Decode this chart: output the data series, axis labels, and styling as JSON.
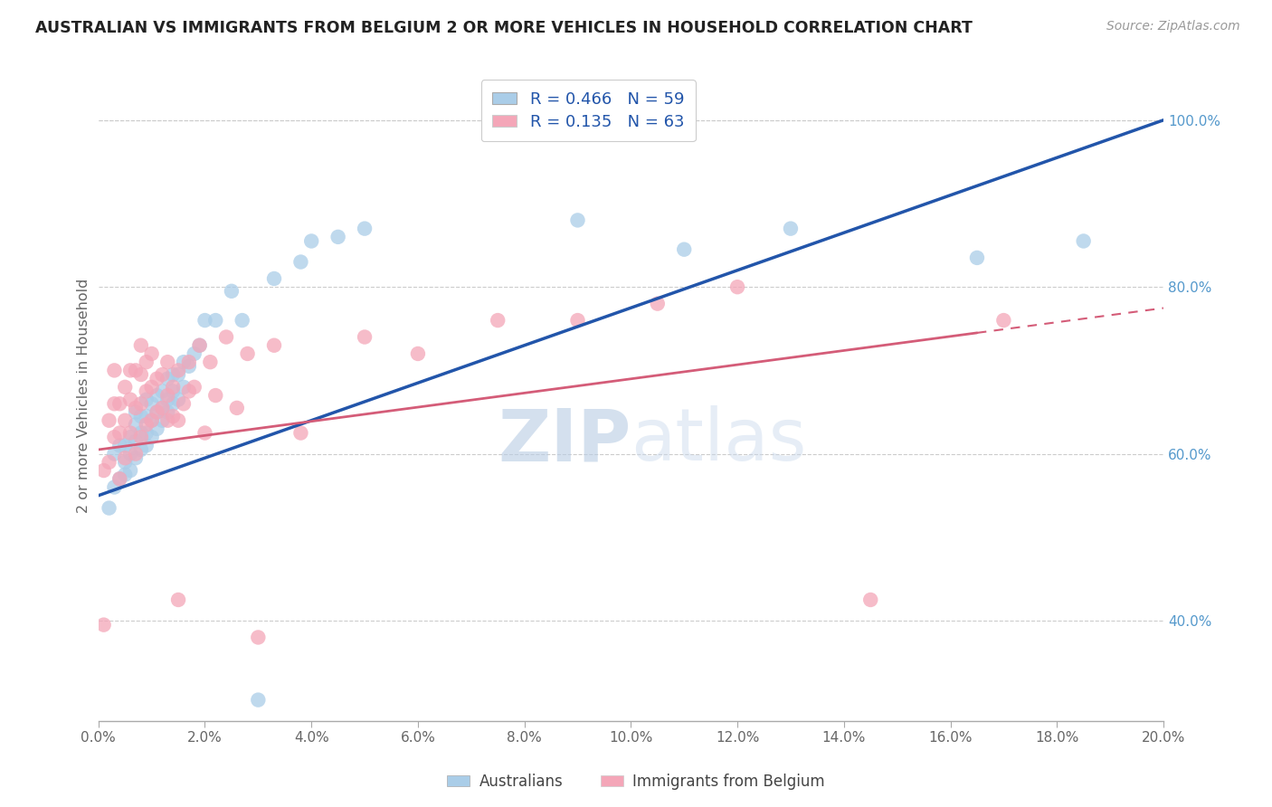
{
  "title": "AUSTRALIAN VS IMMIGRANTS FROM BELGIUM 2 OR MORE VEHICLES IN HOUSEHOLD CORRELATION CHART",
  "source": "Source: ZipAtlas.com",
  "ylabel": "2 or more Vehicles in Household",
  "xlim": [
    0.0,
    0.2
  ],
  "ylim": [
    0.28,
    1.06
  ],
  "legend_label1": "R = 0.466   N = 59",
  "legend_label2": "R = 0.135   N = 63",
  "legend_xlabel": "Australians",
  "legend_xlabel2": "Immigrants from Belgium",
  "blue_color": "#aacde8",
  "pink_color": "#f4a6b8",
  "blue_line_color": "#2255aa",
  "pink_line_color": "#d45c78",
  "watermark_zip": "ZIP",
  "watermark_atlas": "atlas",
  "R1": 0.466,
  "N1": 59,
  "R2": 0.135,
  "N2": 63,
  "blue_x": [
    0.002,
    0.003,
    0.003,
    0.004,
    0.004,
    0.005,
    0.005,
    0.005,
    0.006,
    0.006,
    0.006,
    0.007,
    0.007,
    0.007,
    0.007,
    0.008,
    0.008,
    0.008,
    0.009,
    0.009,
    0.009,
    0.009,
    0.01,
    0.01,
    0.01,
    0.011,
    0.011,
    0.011,
    0.012,
    0.012,
    0.012,
    0.013,
    0.013,
    0.013,
    0.014,
    0.014,
    0.014,
    0.015,
    0.015,
    0.016,
    0.016,
    0.017,
    0.018,
    0.019,
    0.02,
    0.022,
    0.025,
    0.027,
    0.03,
    0.033,
    0.038,
    0.04,
    0.045,
    0.05,
    0.09,
    0.11,
    0.13,
    0.165,
    0.185
  ],
  "blue_y": [
    0.535,
    0.56,
    0.6,
    0.61,
    0.57,
    0.575,
    0.59,
    0.61,
    0.58,
    0.6,
    0.62,
    0.595,
    0.615,
    0.635,
    0.65,
    0.605,
    0.625,
    0.645,
    0.61,
    0.625,
    0.645,
    0.665,
    0.62,
    0.64,
    0.66,
    0.63,
    0.65,
    0.67,
    0.64,
    0.655,
    0.675,
    0.65,
    0.665,
    0.69,
    0.66,
    0.675,
    0.695,
    0.665,
    0.695,
    0.68,
    0.71,
    0.705,
    0.72,
    0.73,
    0.76,
    0.76,
    0.795,
    0.76,
    0.305,
    0.81,
    0.83,
    0.855,
    0.86,
    0.87,
    0.88,
    0.845,
    0.87,
    0.835,
    0.855
  ],
  "pink_x": [
    0.001,
    0.001,
    0.002,
    0.002,
    0.003,
    0.003,
    0.003,
    0.004,
    0.004,
    0.004,
    0.005,
    0.005,
    0.005,
    0.006,
    0.006,
    0.006,
    0.007,
    0.007,
    0.007,
    0.008,
    0.008,
    0.008,
    0.008,
    0.009,
    0.009,
    0.009,
    0.01,
    0.01,
    0.01,
    0.011,
    0.011,
    0.012,
    0.012,
    0.013,
    0.013,
    0.013,
    0.014,
    0.014,
    0.015,
    0.015,
    0.015,
    0.016,
    0.017,
    0.017,
    0.018,
    0.019,
    0.02,
    0.021,
    0.022,
    0.024,
    0.026,
    0.028,
    0.03,
    0.033,
    0.038,
    0.05,
    0.06,
    0.075,
    0.09,
    0.105,
    0.12,
    0.145,
    0.17
  ],
  "pink_y": [
    0.395,
    0.58,
    0.59,
    0.64,
    0.62,
    0.66,
    0.7,
    0.57,
    0.625,
    0.66,
    0.595,
    0.64,
    0.68,
    0.625,
    0.665,
    0.7,
    0.6,
    0.655,
    0.7,
    0.62,
    0.66,
    0.695,
    0.73,
    0.635,
    0.675,
    0.71,
    0.64,
    0.68,
    0.72,
    0.65,
    0.69,
    0.655,
    0.695,
    0.64,
    0.67,
    0.71,
    0.645,
    0.68,
    0.425,
    0.64,
    0.7,
    0.66,
    0.675,
    0.71,
    0.68,
    0.73,
    0.625,
    0.71,
    0.67,
    0.74,
    0.655,
    0.72,
    0.38,
    0.73,
    0.625,
    0.74,
    0.72,
    0.76,
    0.76,
    0.78,
    0.8,
    0.425,
    0.76
  ]
}
